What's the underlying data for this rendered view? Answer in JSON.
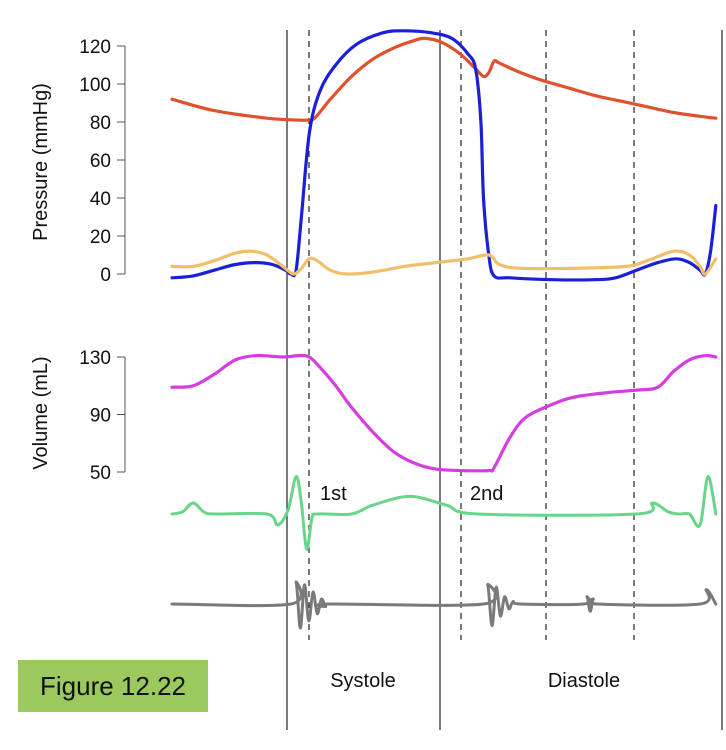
{
  "figure_label": "Figure 12.22",
  "chart_data": [
    {
      "type": "line",
      "panel": "pressure",
      "ylabel": "Pressure (mmHg)",
      "ylim": [
        0,
        120
      ],
      "yticks": [
        "0",
        "20",
        "40",
        "60",
        "80",
        "100",
        "120"
      ],
      "series": [
        {
          "color": "#e0522d",
          "points": [
            [
              0.0,
              92
            ],
            [
              0.08,
              86
            ],
            [
              0.18,
              82
            ],
            [
              0.24,
              81
            ],
            [
              0.255,
              81
            ],
            [
              0.27,
              82
            ],
            [
              0.3,
              92
            ],
            [
              0.34,
              104
            ],
            [
              0.38,
              113
            ],
            [
              0.42,
              119
            ],
            [
              0.46,
              123
            ],
            [
              0.48,
              124
            ],
            [
              0.51,
              122
            ],
            [
              0.545,
              116
            ],
            [
              0.575,
              108
            ],
            [
              0.59,
              104
            ],
            [
              0.6,
              106
            ],
            [
              0.61,
              112
            ],
            [
              0.62,
              111
            ],
            [
              0.66,
              106
            ],
            [
              0.7,
              102
            ],
            [
              0.75,
              98
            ],
            [
              0.8,
              94
            ],
            [
              0.85,
              91
            ],
            [
              0.9,
              88
            ],
            [
              0.95,
              85
            ],
            [
              1.0,
              83
            ],
            [
              1.03,
              82
            ]
          ]
        },
        {
          "color": "#1b1fd6",
          "points": [
            [
              0.0,
              -2
            ],
            [
              0.04,
              -1
            ],
            [
              0.08,
              2
            ],
            [
              0.12,
              5
            ],
            [
              0.16,
              6
            ],
            [
              0.19,
              5
            ],
            [
              0.215,
              2
            ],
            [
              0.225,
              0
            ],
            [
              0.235,
              2
            ],
            [
              0.245,
              30
            ],
            [
              0.26,
              74
            ],
            [
              0.28,
              96
            ],
            [
              0.31,
              110
            ],
            [
              0.35,
              121
            ],
            [
              0.4,
              127
            ],
            [
              0.44,
              128
            ],
            [
              0.49,
              127
            ],
            [
              0.53,
              124
            ],
            [
              0.56,
              116
            ],
            [
              0.575,
              108
            ],
            [
              0.585,
              80
            ],
            [
              0.59,
              40
            ],
            [
              0.6,
              10
            ],
            [
              0.61,
              -1
            ],
            [
              0.64,
              -2
            ],
            [
              0.72,
              -3
            ],
            [
              0.8,
              -3
            ],
            [
              0.84,
              -2
            ],
            [
              0.88,
              2
            ],
            [
              0.92,
              6
            ],
            [
              0.955,
              8
            ],
            [
              0.98,
              6
            ],
            [
              1.0,
              2
            ],
            [
              1.01,
              0
            ],
            [
              1.02,
              12
            ],
            [
              1.03,
              36
            ]
          ]
        },
        {
          "color": "#f0bf6a",
          "points": [
            [
              0.0,
              4
            ],
            [
              0.04,
              4
            ],
            [
              0.08,
              7
            ],
            [
              0.12,
              11
            ],
            [
              0.15,
              12
            ],
            [
              0.18,
              10
            ],
            [
              0.21,
              4
            ],
            [
              0.23,
              0
            ],
            [
              0.245,
              3
            ],
            [
              0.26,
              8
            ],
            [
              0.275,
              7
            ],
            [
              0.3,
              2
            ],
            [
              0.33,
              0
            ],
            [
              0.38,
              1
            ],
            [
              0.44,
              4
            ],
            [
              0.5,
              6
            ],
            [
              0.56,
              8
            ],
            [
              0.6,
              10
            ],
            [
              0.62,
              5
            ],
            [
              0.66,
              3
            ],
            [
              0.76,
              3
            ],
            [
              0.86,
              4
            ],
            [
              0.9,
              7
            ],
            [
              0.95,
              12
            ],
            [
              0.98,
              10
            ],
            [
              1.0,
              4
            ],
            [
              1.01,
              0
            ],
            [
              1.03,
              8
            ]
          ]
        }
      ]
    },
    {
      "type": "line",
      "panel": "volume",
      "ylabel": "Volume (mL)",
      "ylim": [
        50,
        130
      ],
      "yticks": [
        "50",
        "90",
        "130"
      ],
      "series": [
        {
          "color": "#d63de0",
          "points": [
            [
              0.0,
              109
            ],
            [
              0.04,
              110
            ],
            [
              0.08,
              118
            ],
            [
              0.12,
              128
            ],
            [
              0.16,
              131
            ],
            [
              0.21,
              130
            ],
            [
              0.24,
              131
            ],
            [
              0.26,
              130
            ],
            [
              0.28,
              123
            ],
            [
              0.31,
              110
            ],
            [
              0.34,
              95
            ],
            [
              0.38,
              78
            ],
            [
              0.42,
              64
            ],
            [
              0.46,
              56
            ],
            [
              0.5,
              52
            ],
            [
              0.55,
              51
            ],
            [
              0.6,
              51
            ],
            [
              0.61,
              53
            ],
            [
              0.64,
              74
            ],
            [
              0.67,
              88
            ],
            [
              0.72,
              97
            ],
            [
              0.76,
              102
            ],
            [
              0.82,
              105
            ],
            [
              0.88,
              107
            ],
            [
              0.92,
              109
            ],
            [
              0.95,
              120
            ],
            [
              0.98,
              128
            ],
            [
              1.01,
              131
            ],
            [
              1.03,
              130
            ]
          ]
        }
      ]
    },
    {
      "type": "line",
      "panel": "ecg",
      "series": [
        {
          "color": "#67d68a",
          "points": [
            [
              0.0,
              0
            ],
            [
              0.02,
              1
            ],
            [
              0.04,
              5
            ],
            [
              0.06,
              1
            ],
            [
              0.08,
              0
            ],
            [
              0.18,
              0
            ],
            [
              0.2,
              -5
            ],
            [
              0.22,
              2
            ],
            [
              0.235,
              17
            ],
            [
              0.245,
              5
            ],
            [
              0.255,
              -16
            ],
            [
              0.265,
              -2
            ],
            [
              0.275,
              0
            ],
            [
              0.34,
              0
            ],
            [
              0.38,
              4
            ],
            [
              0.45,
              8
            ],
            [
              0.52,
              4
            ],
            [
              0.58,
              0
            ],
            [
              0.88,
              0
            ],
            [
              0.91,
              5
            ],
            [
              0.94,
              1
            ],
            [
              0.96,
              0
            ],
            [
              0.98,
              0
            ],
            [
              1.0,
              -5
            ],
            [
              1.015,
              17
            ],
            [
              1.03,
              0
            ]
          ]
        }
      ]
    },
    {
      "type": "line",
      "panel": "heart-sounds",
      "annotations": [
        "1st",
        "2nd"
      ],
      "series": [
        {
          "color": "#7a7a7a",
          "points": [
            [
              0.0,
              0
            ],
            [
              0.225,
              0
            ],
            [
              0.235,
              9
            ],
            [
              0.243,
              -10
            ],
            [
              0.251,
              8
            ],
            [
              0.259,
              -7
            ],
            [
              0.267,
              5
            ],
            [
              0.275,
              -4
            ],
            [
              0.283,
              2
            ],
            [
              0.291,
              -1
            ],
            [
              0.3,
              0
            ],
            [
              0.59,
              0
            ],
            [
              0.598,
              8
            ],
            [
              0.606,
              -9
            ],
            [
              0.614,
              7
            ],
            [
              0.622,
              -5
            ],
            [
              0.63,
              3
            ],
            [
              0.638,
              -2
            ],
            [
              0.646,
              1
            ],
            [
              0.66,
              0
            ],
            [
              0.78,
              0
            ],
            [
              0.786,
              3
            ],
            [
              0.792,
              -3
            ],
            [
              0.798,
              2
            ],
            [
              0.806,
              0
            ],
            [
              1.0,
              0
            ],
            [
              1.012,
              6
            ],
            [
              1.03,
              0
            ]
          ]
        }
      ]
    }
  ],
  "phase_labels": {
    "systole": "Systole",
    "diastole": "Diastole"
  },
  "sound_labels": {
    "first": "1st",
    "second": "2nd"
  }
}
